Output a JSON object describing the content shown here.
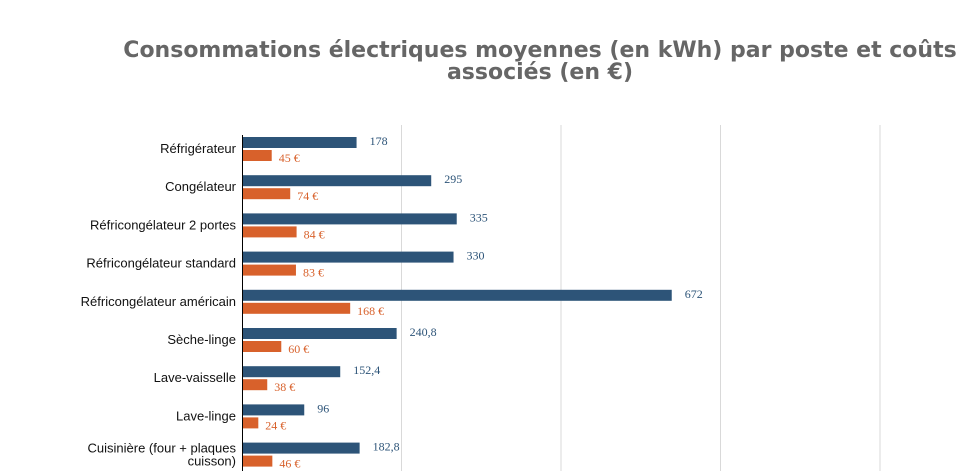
{
  "chart_data": {
    "type": "bar",
    "orientation": "horizontal",
    "title": "Consommations électriques moyennes (en kWh) par poste et coûts associés (en €)",
    "categories": [
      "Réfrigérateur",
      "Congélateur",
      "Réfricongélateur 2 portes",
      "Réfricongélateur standard",
      "Réfricongélateur américain",
      "Sèche-linge",
      "Lave-vaisselle",
      "Lave-linge",
      "Cuisinière (four + plaques cuisson)"
    ],
    "series": [
      {
        "color": "#2d5478",
        "values": [
          178,
          295,
          335,
          330,
          672,
          240.8,
          152.4,
          96,
          182.8
        ],
        "labels": [
          "178",
          "295",
          "335",
          "330",
          "672",
          "240,8",
          "152,4",
          "96",
          "182,8"
        ]
      },
      {
        "color": "#d8612b",
        "values": [
          45,
          74,
          84,
          83,
          168,
          60,
          38,
          24,
          46
        ],
        "labels": [
          "45 €",
          "74 €",
          "84 €",
          "83 €",
          "168 €",
          "60 €",
          "38 €",
          "24 €",
          "46 €"
        ]
      }
    ],
    "xlim": [
      0,
      1000
    ],
    "grid": true,
    "legend": "none"
  }
}
